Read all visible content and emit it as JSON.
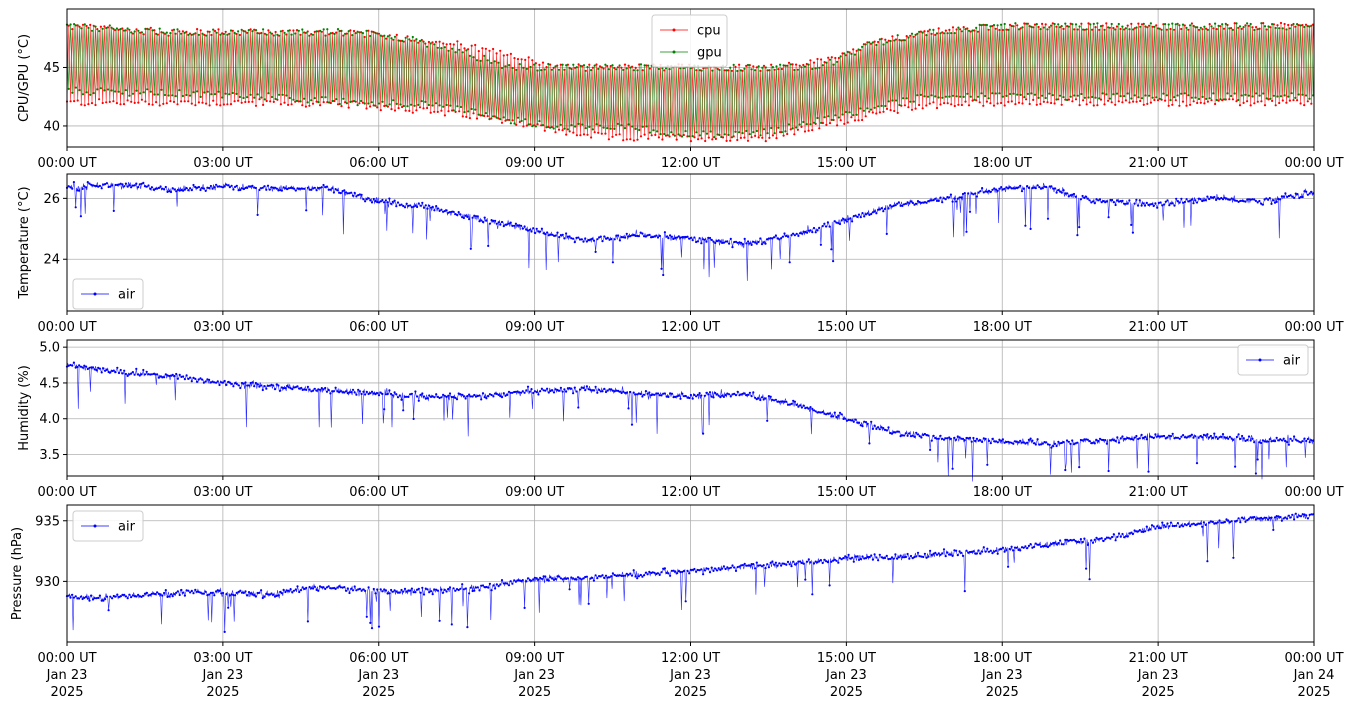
{
  "chart_data": [
    {
      "type": "line",
      "ylabel": "CPU/GPU (°C)",
      "xlim": [
        "2025-01-23T00:00",
        "2025-01-24T00:00"
      ],
      "ylim": [
        38.2,
        50.0
      ],
      "yticks": [
        40,
        45
      ],
      "x_tick_labels": [
        "00:00 UT",
        "03:00 UT",
        "06:00 UT",
        "09:00 UT",
        "12:00 UT",
        "15:00 UT",
        "18:00 UT",
        "21:00 UT",
        "00:00 UT"
      ],
      "grid": true,
      "legend": "top-center",
      "series_style": "oscillating",
      "series": [
        {
          "name": "cpu",
          "color": "#ff0000",
          "x_hours": [
            0,
            2,
            4,
            5.5,
            6.5,
            7.5,
            8.5,
            9.5,
            10.5,
            11.5,
            12.5,
            13.5,
            14.5,
            15.5,
            16.5,
            18,
            20,
            22,
            24
          ],
          "low": [
            42.0,
            42.0,
            42.0,
            41.8,
            41.5,
            41.0,
            40.5,
            39.5,
            39.0,
            39.0,
            39.0,
            39.0,
            40.0,
            41.0,
            41.8,
            42.0,
            42.0,
            42.0,
            42.0
          ],
          "high": [
            48.5,
            48.0,
            48.0,
            48.0,
            47.5,
            47.0,
            46.0,
            45.0,
            45.0,
            45.0,
            45.0,
            45.0,
            45.5,
            47.0,
            48.0,
            48.5,
            48.5,
            48.5,
            48.5
          ]
        },
        {
          "name": "gpu",
          "color": "#008000",
          "x_hours": [
            0,
            2,
            4,
            5.5,
            6.5,
            7.5,
            8.5,
            9.5,
            10.5,
            11.5,
            12.5,
            13.5,
            14.5,
            15.5,
            16.5,
            18,
            20,
            22,
            24
          ],
          "low": [
            43.0,
            42.8,
            42.5,
            42.0,
            42.0,
            41.5,
            40.5,
            40.0,
            40.0,
            39.5,
            39.2,
            39.5,
            40.5,
            41.5,
            42.5,
            42.5,
            42.5,
            42.5,
            42.5
          ],
          "high": [
            48.5,
            48.0,
            48.0,
            48.0,
            47.5,
            46.5,
            45.0,
            45.0,
            45.0,
            45.0,
            45.0,
            45.0,
            45.0,
            47.0,
            48.0,
            48.5,
            48.5,
            48.5,
            48.5
          ]
        }
      ]
    },
    {
      "type": "line",
      "ylabel": "Temperature (°C)",
      "xlim": [
        "2025-01-23T00:00",
        "2025-01-24T00:00"
      ],
      "ylim": [
        22.3,
        26.8
      ],
      "yticks": [
        24,
        26
      ],
      "x_tick_labels": [
        "00:00 UT",
        "03:00 UT",
        "06:00 UT",
        "09:00 UT",
        "12:00 UT",
        "15:00 UT",
        "18:00 UT",
        "21:00 UT",
        "00:00 UT"
      ],
      "grid": true,
      "legend": "bottom-left",
      "series": [
        {
          "name": "air",
          "color": "#0000ff",
          "x_hours": [
            0,
            1,
            2,
            3,
            4,
            5,
            6,
            7,
            8,
            9,
            10,
            11,
            12,
            13,
            14,
            15,
            16,
            17,
            18,
            18.8,
            19.5,
            20,
            21,
            22,
            23,
            24
          ],
          "values": [
            26.4,
            26.45,
            26.3,
            26.4,
            26.3,
            26.35,
            25.9,
            25.7,
            25.3,
            24.95,
            24.6,
            24.8,
            24.7,
            24.5,
            24.8,
            25.3,
            25.8,
            26.0,
            26.3,
            26.4,
            26.0,
            25.9,
            25.8,
            26.0,
            25.9,
            26.2
          ]
        }
      ]
    },
    {
      "type": "line",
      "ylabel": "Humidity (%)",
      "xlim": [
        "2025-01-23T00:00",
        "2025-01-24T00:00"
      ],
      "ylim": [
        3.2,
        5.1
      ],
      "yticks": [
        3.5,
        4.0,
        4.5,
        5.0
      ],
      "x_tick_labels": [
        "00:00 UT",
        "03:00 UT",
        "06:00 UT",
        "09:00 UT",
        "12:00 UT",
        "15:00 UT",
        "18:00 UT",
        "21:00 UT",
        "00:00 UT"
      ],
      "grid": true,
      "legend": "top-right",
      "series": [
        {
          "name": "air",
          "color": "#0000ff",
          "x_hours": [
            0,
            1,
            2,
            3,
            4,
            5,
            6,
            7,
            8,
            9,
            10,
            11,
            12,
            13,
            14,
            15,
            16,
            17,
            18,
            19,
            20,
            21,
            22,
            23,
            24
          ],
          "values": [
            4.75,
            4.65,
            4.6,
            4.5,
            4.45,
            4.4,
            4.35,
            4.3,
            4.32,
            4.38,
            4.42,
            4.35,
            4.32,
            4.35,
            4.2,
            4.0,
            3.8,
            3.72,
            3.68,
            3.65,
            3.7,
            3.75,
            3.75,
            3.7,
            3.7
          ]
        }
      ]
    },
    {
      "type": "line",
      "ylabel": "Pressure (hPa)",
      "xlim": [
        "2025-01-23T00:00",
        "2025-01-24T00:00"
      ],
      "ylim": [
        925.0,
        936.3
      ],
      "yticks": [
        930,
        935
      ],
      "x_tick_labels": [
        "00:00 UT",
        "03:00 UT",
        "06:00 UT",
        "09:00 UT",
        "12:00 UT",
        "15:00 UT",
        "18:00 UT",
        "21:00 UT",
        "00:00 UT"
      ],
      "x_date_labels": [
        "Jan 23",
        "Jan 23",
        "Jan 23",
        "Jan 23",
        "Jan 23",
        "Jan 23",
        "Jan 23",
        "Jan 23",
        "Jan 24"
      ],
      "x_year_labels": [
        "2025",
        "2025",
        "2025",
        "2025",
        "2025",
        "2025",
        "2025",
        "2025",
        "2025"
      ],
      "grid": true,
      "legend": "top-left",
      "series": [
        {
          "name": "air",
          "color": "#0000ff",
          "x_hours": [
            0,
            1,
            2,
            2.5,
            3,
            4,
            4.5,
            5,
            6,
            7,
            8,
            9,
            10,
            11,
            12,
            13,
            14,
            15,
            16,
            17,
            18,
            19,
            20,
            21,
            22,
            23,
            24
          ],
          "values": [
            928.7,
            928.7,
            929.0,
            929.2,
            929.0,
            928.9,
            929.4,
            929.5,
            929.2,
            929.2,
            929.5,
            930.2,
            930.3,
            930.6,
            930.8,
            931.2,
            931.5,
            931.9,
            932.0,
            932.3,
            932.6,
            933.1,
            933.5,
            934.5,
            934.8,
            935.2,
            935.5
          ]
        }
      ]
    }
  ]
}
